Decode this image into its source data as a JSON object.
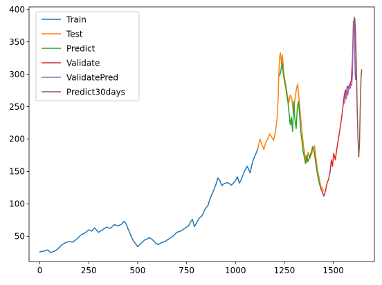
{
  "chart_data": {
    "type": "line",
    "title": "",
    "xlabel": "",
    "ylabel": "",
    "xlim": [
      -55,
      1710
    ],
    "ylim": [
      11,
      404
    ],
    "xticks": [
      0,
      250,
      500,
      750,
      1000,
      1250,
      1500
    ],
    "yticks": [
      50,
      100,
      150,
      200,
      250,
      300,
      350,
      400
    ],
    "xtick_labels": [
      "0",
      "250",
      "500",
      "750",
      "1000",
      "1250",
      "1500"
    ],
    "ytick_labels": [
      "50",
      "100",
      "150",
      "200",
      "250",
      "300",
      "350",
      "400"
    ],
    "grid": false,
    "legend_position": "upper-left",
    "series": [
      {
        "name": "Train",
        "color": "#1f77b4",
        "points": [
          [
            0,
            26
          ],
          [
            20,
            27
          ],
          [
            40,
            29
          ],
          [
            55,
            25
          ],
          [
            75,
            27
          ],
          [
            90,
            30
          ],
          [
            110,
            36
          ],
          [
            130,
            40
          ],
          [
            150,
            42
          ],
          [
            170,
            41
          ],
          [
            190,
            46
          ],
          [
            210,
            52
          ],
          [
            230,
            55
          ],
          [
            250,
            60
          ],
          [
            265,
            58
          ],
          [
            280,
            63
          ],
          [
            300,
            56
          ],
          [
            320,
            60
          ],
          [
            340,
            64
          ],
          [
            360,
            62
          ],
          [
            380,
            68
          ],
          [
            400,
            66
          ],
          [
            420,
            69
          ],
          [
            430,
            73
          ],
          [
            440,
            70
          ],
          [
            450,
            62
          ],
          [
            460,
            55
          ],
          [
            470,
            48
          ],
          [
            480,
            42
          ],
          [
            490,
            38
          ],
          [
            500,
            34
          ],
          [
            510,
            37
          ],
          [
            520,
            40
          ],
          [
            535,
            44
          ],
          [
            550,
            46
          ],
          [
            560,
            48
          ],
          [
            575,
            45
          ],
          [
            590,
            40
          ],
          [
            605,
            37
          ],
          [
            620,
            40
          ],
          [
            640,
            42
          ],
          [
            660,
            46
          ],
          [
            680,
            50
          ],
          [
            700,
            56
          ],
          [
            720,
            58
          ],
          [
            740,
            62
          ],
          [
            760,
            66
          ],
          [
            770,
            72
          ],
          [
            780,
            76
          ],
          [
            790,
            65
          ],
          [
            800,
            70
          ],
          [
            815,
            78
          ],
          [
            830,
            82
          ],
          [
            845,
            92
          ],
          [
            860,
            98
          ],
          [
            870,
            108
          ],
          [
            880,
            115
          ],
          [
            890,
            122
          ],
          [
            900,
            130
          ],
          [
            910,
            140
          ],
          [
            920,
            136
          ],
          [
            930,
            128
          ],
          [
            940,
            131
          ],
          [
            960,
            133
          ],
          [
            980,
            129
          ],
          [
            1000,
            136
          ],
          [
            1010,
            142
          ],
          [
            1020,
            132
          ],
          [
            1030,
            138
          ],
          [
            1045,
            150
          ],
          [
            1060,
            158
          ],
          [
            1075,
            148
          ],
          [
            1085,
            162
          ],
          [
            1095,
            171
          ],
          [
            1105,
            178
          ],
          [
            1115,
            186
          ]
        ]
      },
      {
        "name": "Test",
        "color": "#ff7f0e",
        "points": [
          [
            1115,
            186
          ],
          [
            1125,
            200
          ],
          [
            1135,
            192
          ],
          [
            1145,
            184
          ],
          [
            1155,
            195
          ],
          [
            1165,
            200
          ],
          [
            1175,
            208
          ],
          [
            1185,
            203
          ],
          [
            1195,
            198
          ],
          [
            1205,
            212
          ],
          [
            1212,
            230
          ],
          [
            1218,
            262
          ],
          [
            1222,
            302
          ],
          [
            1226,
            328
          ],
          [
            1230,
            333
          ],
          [
            1235,
            316
          ],
          [
            1240,
            330
          ],
          [
            1246,
            305
          ],
          [
            1252,
            292
          ],
          [
            1258,
            282
          ],
          [
            1265,
            268
          ],
          [
            1272,
            256
          ],
          [
            1280,
            268
          ],
          [
            1288,
            262
          ],
          [
            1296,
            240
          ],
          [
            1304,
            262
          ],
          [
            1312,
            278
          ],
          [
            1318,
            285
          ],
          [
            1325,
            262
          ],
          [
            1332,
            238
          ],
          [
            1340,
            212
          ],
          [
            1348,
            188
          ],
          [
            1356,
            174
          ],
          [
            1364,
            164
          ],
          [
            1372,
            180
          ],
          [
            1380,
            170
          ],
          [
            1388,
            176
          ],
          [
            1396,
            184
          ],
          [
            1404,
            190
          ],
          [
            1412,
            170
          ],
          [
            1420,
            150
          ],
          [
            1428,
            140
          ],
          [
            1436,
            127
          ],
          [
            1442,
            125
          ],
          [
            1450,
            120
          ]
        ]
      },
      {
        "name": "Predict",
        "color": "#2ca02c",
        "points": [
          [
            1226,
            298
          ],
          [
            1232,
            306
          ],
          [
            1238,
            318
          ],
          [
            1244,
            302
          ],
          [
            1250,
            290
          ],
          [
            1256,
            282
          ],
          [
            1262,
            268
          ],
          [
            1268,
            258
          ],
          [
            1274,
            240
          ],
          [
            1280,
            222
          ],
          [
            1286,
            234
          ],
          [
            1292,
            212
          ],
          [
            1298,
            258
          ],
          [
            1304,
            230
          ],
          [
            1310,
            216
          ],
          [
            1316,
            248
          ],
          [
            1322,
            258
          ],
          [
            1328,
            236
          ],
          [
            1334,
            210
          ],
          [
            1340,
            196
          ],
          [
            1346,
            180
          ],
          [
            1352,
            172
          ],
          [
            1358,
            162
          ],
          [
            1364,
            175
          ],
          [
            1370,
            165
          ],
          [
            1376,
            170
          ],
          [
            1382,
            176
          ],
          [
            1388,
            180
          ],
          [
            1394,
            188
          ],
          [
            1400,
            184
          ],
          [
            1406,
            172
          ],
          [
            1412,
            160
          ],
          [
            1418,
            148
          ],
          [
            1424,
            138
          ],
          [
            1430,
            130
          ],
          [
            1436,
            124
          ]
        ]
      },
      {
        "name": "Validate",
        "color": "#d62728",
        "points": [
          [
            1436,
            124
          ],
          [
            1444,
            118
          ],
          [
            1452,
            112
          ],
          [
            1460,
            120
          ],
          [
            1468,
            132
          ],
          [
            1476,
            138
          ],
          [
            1484,
            150
          ],
          [
            1490,
            168
          ],
          [
            1496,
            158
          ],
          [
            1502,
            178
          ],
          [
            1510,
            168
          ],
          [
            1518,
            185
          ],
          [
            1526,
            200
          ],
          [
            1534,
            215
          ],
          [
            1542,
            232
          ],
          [
            1550,
            252
          ],
          [
            1556,
            268
          ],
          [
            1562,
            276
          ],
          [
            1568,
            268
          ],
          [
            1574,
            282
          ],
          [
            1580,
            278
          ],
          [
            1586,
            286
          ],
          [
            1592,
            290
          ],
          [
            1598,
            322
          ],
          [
            1603,
            382
          ],
          [
            1608,
            376
          ],
          [
            1612,
            300
          ],
          [
            1615,
            292
          ]
        ]
      },
      {
        "name": "ValidatePred",
        "color": "#9467bd",
        "points": [
          [
            1558,
            255
          ],
          [
            1562,
            270
          ],
          [
            1566,
            262
          ],
          [
            1570,
            280
          ],
          [
            1574,
            268
          ],
          [
            1578,
            276
          ],
          [
            1582,
            284
          ],
          [
            1586,
            278
          ],
          [
            1590,
            285
          ],
          [
            1594,
            283
          ],
          [
            1598,
            300
          ],
          [
            1602,
            368
          ],
          [
            1606,
            385
          ],
          [
            1610,
            330
          ],
          [
            1614,
            292
          ]
        ]
      },
      {
        "name": "Predict30days",
        "color": "#8c564b",
        "points": [
          [
            1606,
            388
          ],
          [
            1610,
            386
          ],
          [
            1614,
            358
          ],
          [
            1618,
            310
          ],
          [
            1622,
            250
          ],
          [
            1626,
            200
          ],
          [
            1630,
            172
          ],
          [
            1634,
            194
          ],
          [
            1638,
            252
          ],
          [
            1642,
            296
          ],
          [
            1645,
            307
          ]
        ]
      }
    ]
  }
}
